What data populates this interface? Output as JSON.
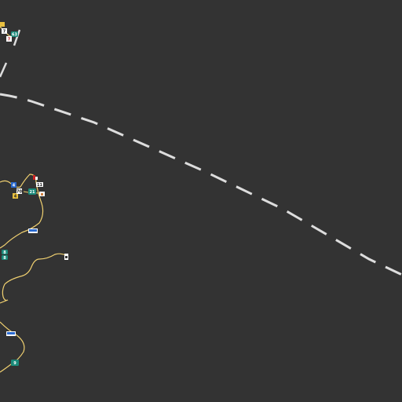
{
  "map": {
    "background_color": "#333333",
    "road_color": "#f0d070",
    "boundary_color": "#dddddd"
  },
  "markers": {
    "highway_shields": [
      "63",
      "21",
      "8",
      "8",
      "9"
    ],
    "route_signs": [
      "7",
      "7",
      "4",
      "4",
      "70",
      "11"
    ]
  }
}
